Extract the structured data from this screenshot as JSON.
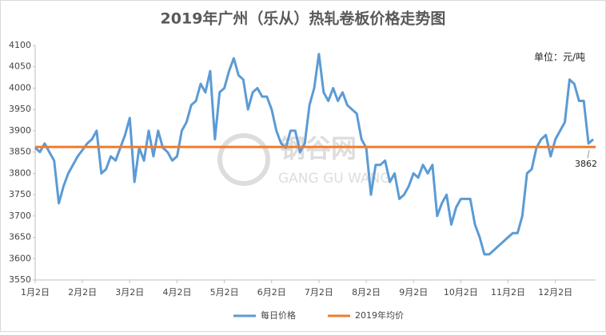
{
  "chart_data": {
    "type": "line",
    "title": "2019年广州（乐从）热轧卷板价格走势图",
    "unit": "单位：元/吨",
    "watermark": {
      "cn": "钢谷网",
      "en": "GANG GU WANG"
    },
    "categories": [
      "1月2日",
      null,
      null,
      null,
      null,
      null,
      null,
      null,
      null,
      null,
      "2月2日",
      null,
      null,
      null,
      null,
      null,
      null,
      null,
      null,
      null,
      "3月2日",
      null,
      null,
      null,
      null,
      null,
      null,
      null,
      null,
      null,
      "4月2日",
      null,
      null,
      null,
      null,
      null,
      null,
      null,
      null,
      null,
      "5月2日",
      null,
      null,
      null,
      null,
      null,
      null,
      null,
      null,
      null,
      "6月2日",
      null,
      null,
      null,
      null,
      null,
      null,
      null,
      null,
      null,
      "7月2日",
      null,
      null,
      null,
      null,
      null,
      null,
      null,
      null,
      null,
      "8月2日",
      null,
      null,
      null,
      null,
      null,
      null,
      null,
      null,
      null,
      "9月2日",
      null,
      null,
      null,
      null,
      null,
      null,
      null,
      null,
      null,
      "10月2日",
      null,
      null,
      null,
      null,
      null,
      null,
      null,
      null,
      null,
      "11月2日",
      null,
      null,
      null,
      null,
      null,
      null,
      null,
      null,
      null,
      "12月2日",
      null,
      null,
      null,
      null,
      null,
      null,
      null,
      null
    ],
    "series": [
      {
        "name": "每日价格",
        "color": "#5b9bd5",
        "values": [
          3860,
          3850,
          3870,
          3850,
          3830,
          3730,
          3770,
          3800,
          3820,
          3840,
          3855,
          3870,
          3880,
          3900,
          3800,
          3810,
          3840,
          3830,
          3860,
          3890,
          3930,
          3780,
          3860,
          3830,
          3900,
          3840,
          3900,
          3860,
          3850,
          3830,
          3840,
          3900,
          3920,
          3960,
          3970,
          4010,
          3990,
          4040,
          3880,
          3990,
          4000,
          4040,
          4070,
          4030,
          4020,
          3950,
          3990,
          4000,
          3980,
          3980,
          3950,
          3900,
          3870,
          3860,
          3900,
          3900,
          3850,
          3870,
          3960,
          4000,
          4080,
          3990,
          3970,
          4000,
          3970,
          3990,
          3960,
          3950,
          3940,
          3880,
          3860,
          3750,
          3820,
          3820,
          3830,
          3780,
          3800,
          3740,
          3750,
          3770,
          3800,
          3790,
          3820,
          3800,
          3820,
          3700,
          3730,
          3750,
          3680,
          3720,
          3740,
          3740,
          3740,
          3680,
          3650,
          3610,
          3610,
          3620,
          3630,
          3640,
          3650,
          3660,
          3660,
          3700,
          3800,
          3810,
          3860,
          3880,
          3890,
          3840,
          3880,
          3900,
          3920,
          4020,
          4010,
          3970,
          3970,
          3870,
          3880
        ]
      },
      {
        "name": "2019年均价",
        "color": "#ed7d31",
        "value": 3862
      }
    ],
    "ylim": [
      3550,
      4100
    ],
    "yticks": [
      3550,
      3600,
      3650,
      3700,
      3750,
      3800,
      3850,
      3900,
      3950,
      4000,
      4050,
      4100
    ],
    "grid": false
  }
}
